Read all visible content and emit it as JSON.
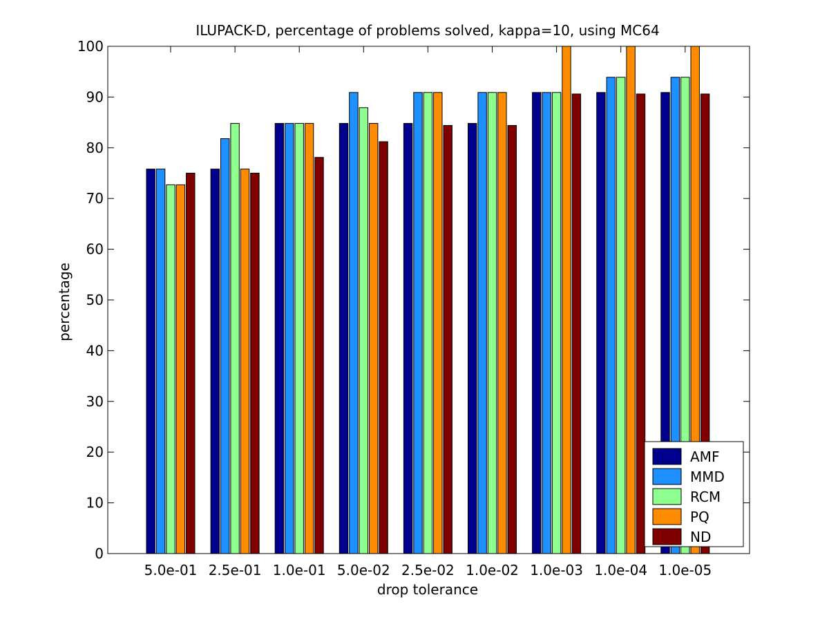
{
  "chart_data": {
    "type": "bar",
    "title": "ILUPACK-D, percentage of problems solved, kappa=10, using MC64",
    "xlabel": "drop tolerance",
    "ylabel": "percentage",
    "ylim": [
      0,
      100
    ],
    "yticks": [
      0,
      10,
      20,
      30,
      40,
      50,
      60,
      70,
      80,
      90,
      100
    ],
    "categories": [
      "5.0e-01",
      "2.5e-01",
      "1.0e-01",
      "5.0e-02",
      "2.5e-02",
      "1.0e-02",
      "1.0e-03",
      "1.0e-04",
      "1.0e-05"
    ],
    "series": [
      {
        "name": "AMF",
        "color": "#00008f",
        "values": [
          75.8,
          75.8,
          84.8,
          84.8,
          84.8,
          84.8,
          90.9,
          90.9,
          90.9
        ]
      },
      {
        "name": "MMD",
        "color": "#1e90ff",
        "values": [
          75.8,
          81.8,
          84.8,
          90.9,
          90.9,
          90.9,
          90.9,
          93.9,
          93.9
        ]
      },
      {
        "name": "RCM",
        "color": "#8fff8f",
        "values": [
          72.7,
          84.8,
          84.8,
          87.9,
          90.9,
          90.9,
          90.9,
          93.9,
          93.9
        ]
      },
      {
        "name": "PQ",
        "color": "#ff8c00",
        "values": [
          72.7,
          75.8,
          84.8,
          84.8,
          90.9,
          90.9,
          100,
          100,
          100
        ]
      },
      {
        "name": "ND",
        "color": "#800000",
        "values": [
          75.0,
          75.0,
          78.1,
          81.2,
          84.4,
          84.4,
          90.6,
          90.6,
          90.6
        ]
      }
    ],
    "grid": false,
    "legend_position": "bottom-right"
  }
}
